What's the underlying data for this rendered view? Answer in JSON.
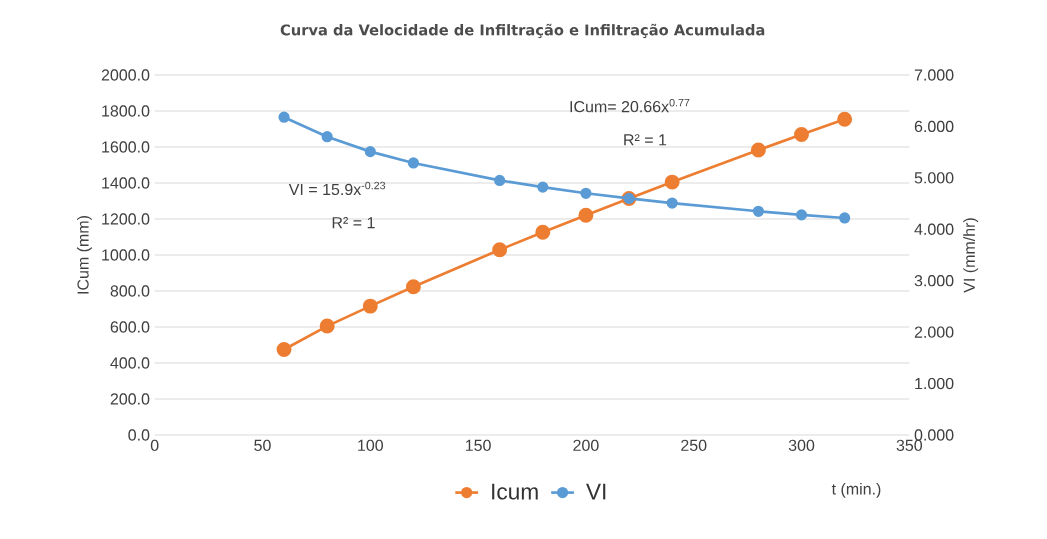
{
  "chart_data": {
    "type": "line",
    "title": "Curva da Velocidade de Infiltração  e Infiltração  Acumulada",
    "xlabel": "t (min.)",
    "ylabel": "ICum (mm)",
    "y2label": "VI (mm/hr)",
    "x": [
      60,
      80,
      100,
      120,
      160,
      180,
      200,
      220,
      240,
      280,
      300,
      320
    ],
    "series": [
      {
        "name": "Icum",
        "color": "#ed7d31",
        "values": [
          475,
          605,
          716,
          824,
          1029,
          1126,
          1221,
          1314,
          1405,
          1583,
          1669,
          1754
        ]
      },
      {
        "name": "VI",
        "color": "#5b9bd5",
        "axis": "y2",
        "values": [
          6.18,
          5.8,
          5.51,
          5.29,
          4.95,
          4.82,
          4.7,
          4.6,
          4.51,
          4.35,
          4.28,
          4.22
        ]
      }
    ],
    "xlim": [
      0,
      350
    ],
    "xticks": [
      0,
      50,
      100,
      150,
      200,
      250,
      300,
      350
    ],
    "ylim": [
      0,
      2000
    ],
    "yticks": [
      {
        "value": 0,
        "label": "0.0"
      },
      {
        "value": 200,
        "label": "200.0"
      },
      {
        "value": 400,
        "label": "400.0"
      },
      {
        "value": 600,
        "label": "600.0"
      },
      {
        "value": 800,
        "label": "800.0"
      },
      {
        "value": 1000,
        "label": "1000.0"
      },
      {
        "value": 1200,
        "label": "1200.0"
      },
      {
        "value": 1400,
        "label": "1400.0"
      },
      {
        "value": 1600,
        "label": "1600.0"
      },
      {
        "value": 1800,
        "label": "1800.0"
      },
      {
        "value": 2000,
        "label": "2000.0"
      }
    ],
    "y2lim": [
      0,
      7
    ],
    "y2ticks": [
      {
        "value": 0,
        "label": "0.000"
      },
      {
        "value": 1,
        "label": "1.000"
      },
      {
        "value": 2,
        "label": "2.000"
      },
      {
        "value": 3,
        "label": "3.000"
      },
      {
        "value": 4,
        "label": "4.000"
      },
      {
        "value": 5,
        "label": "5.000"
      },
      {
        "value": 6,
        "label": "6.000"
      },
      {
        "value": 7,
        "label": "7.000"
      }
    ],
    "annotations": [
      "ICum= 20.66x$^{0.77}$",
      "R² = 1",
      "VI = 15.9x$^{-0.23}$",
      "R² = 1"
    ],
    "grid": "y",
    "legend": "bottom",
    "marker": "circle"
  }
}
